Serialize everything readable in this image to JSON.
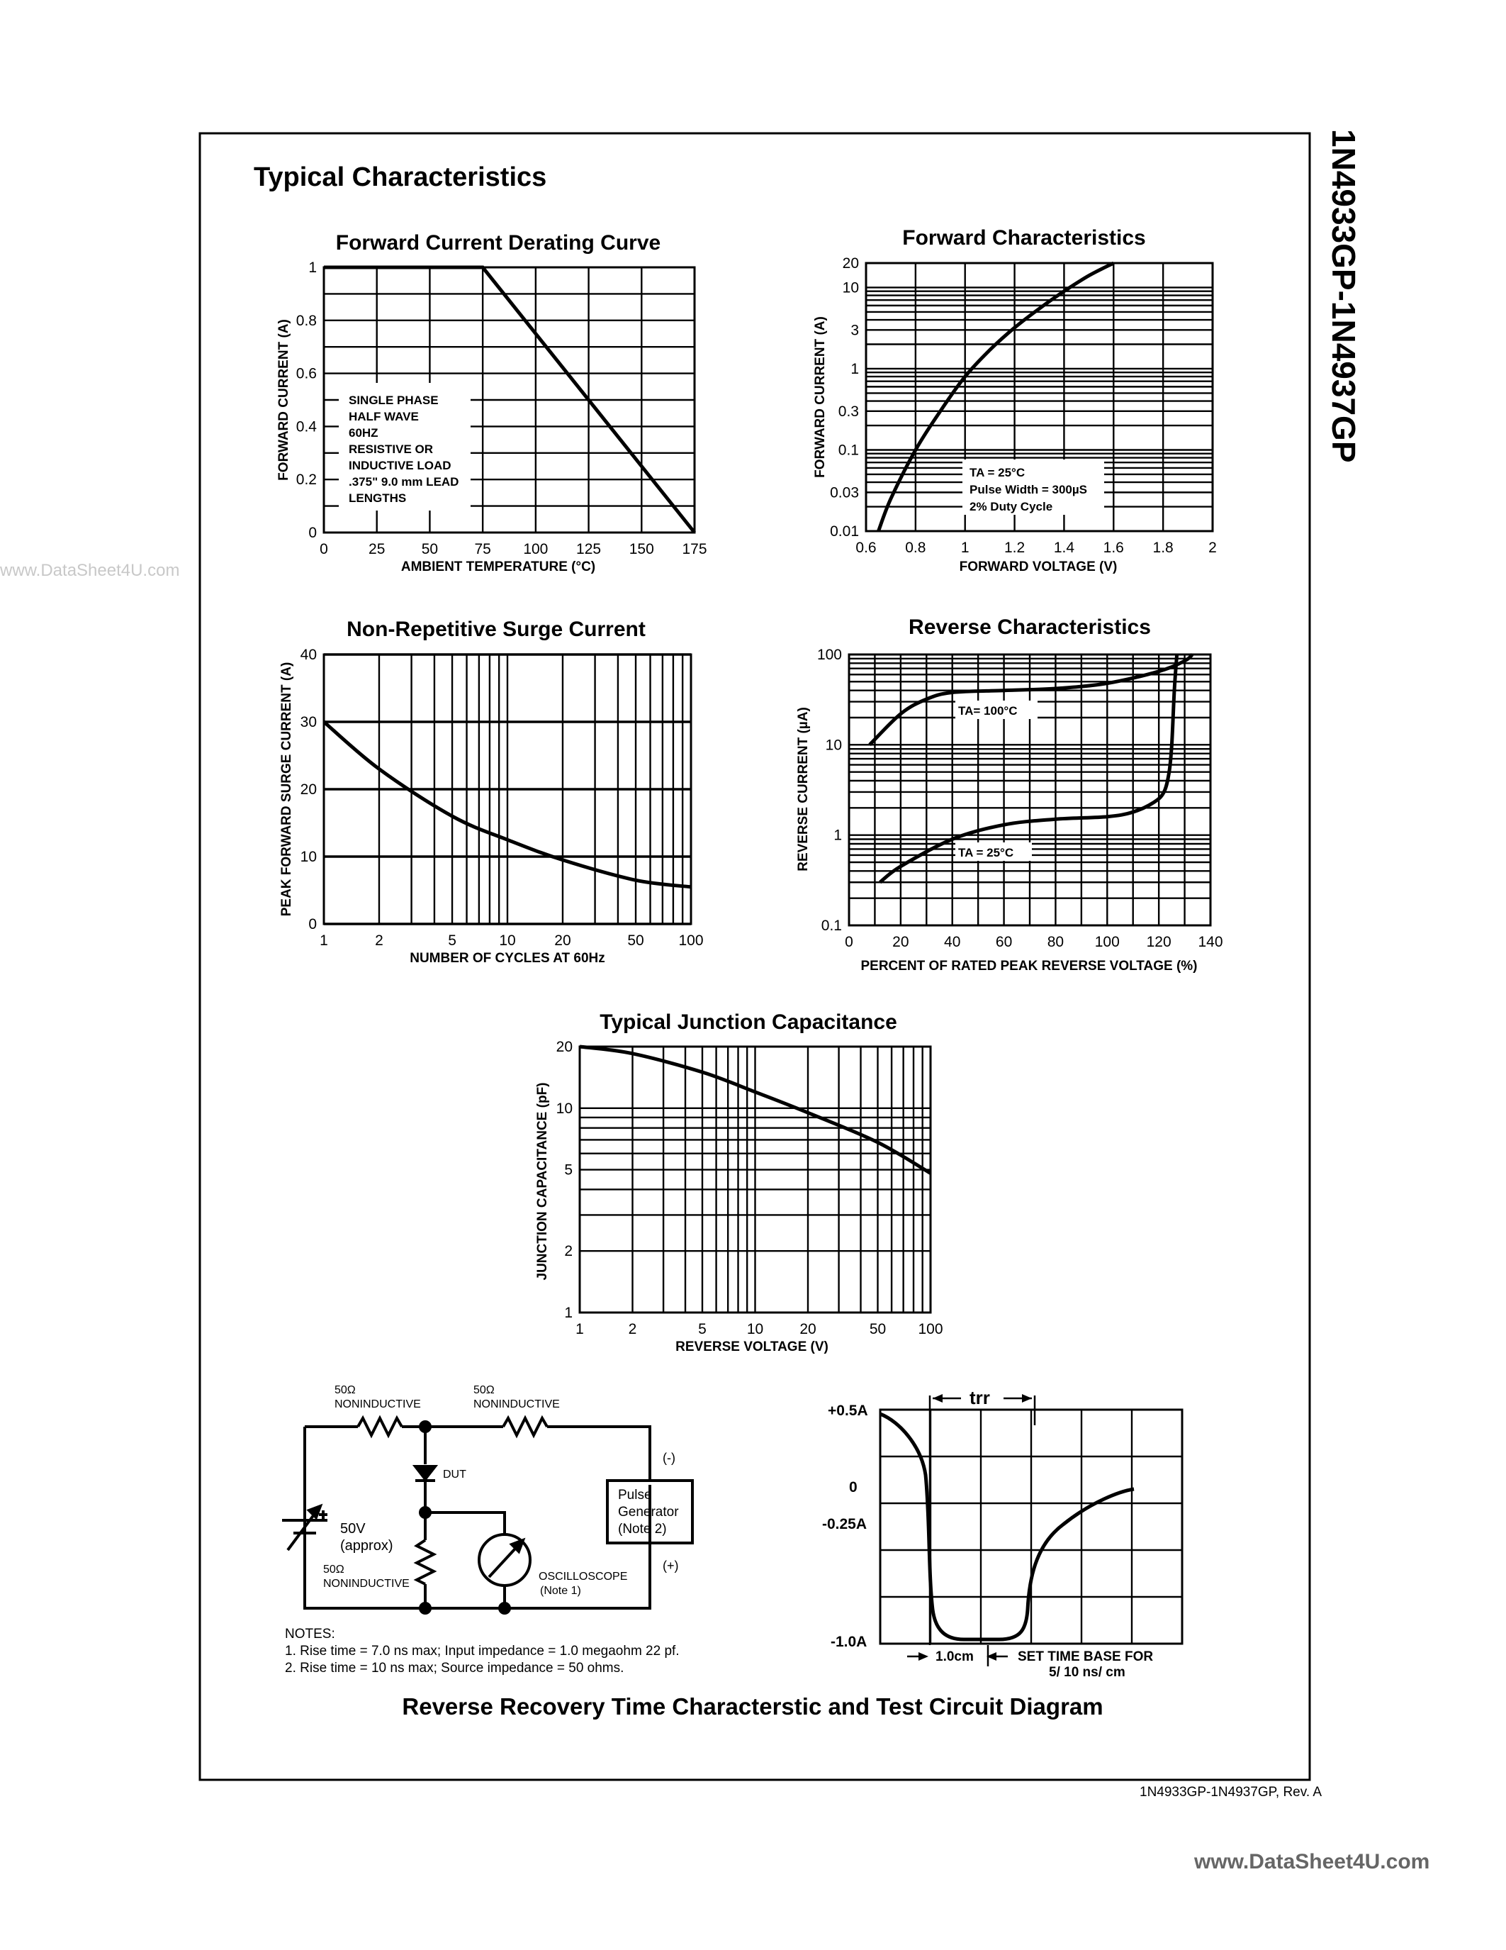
{
  "header": {
    "section_title": "Typical Characteristics",
    "part_number_vertical": "1N4933GP-1N4937GP"
  },
  "watermark": {
    "left": "www.DataSheet4U.com",
    "bottom_right": "www.DataSheet4U.com"
  },
  "footer": {
    "revision": "1N4933GP-1N4937GP, Rev. A"
  },
  "chart_data": [
    {
      "id": "derating",
      "type": "line",
      "title": "Forward Current Derating Curve",
      "xlabel": "AMBIENT TEMPERATURE (°C)",
      "ylabel": "FORWARD CURRENT (A)",
      "xlim": [
        0,
        175
      ],
      "ylim": [
        0,
        1
      ],
      "x_ticks": [
        0,
        25,
        50,
        75,
        100,
        125,
        150,
        175
      ],
      "y_ticks": [
        0,
        0.2,
        0.4,
        0.6,
        0.8,
        1
      ],
      "x_tick_labels": [
        "0",
        "25",
        "50",
        "75",
        "100",
        "125",
        "150",
        "175"
      ],
      "y_tick_labels": [
        "0",
        "0.2",
        "0.4",
        "0.6",
        "0.8",
        "1"
      ],
      "grid": true,
      "annotation": [
        "SINGLE PHASE",
        "HALF WAVE",
        "60HZ",
        "RESISTIVE OR",
        "INDUCTIVE LOAD",
        ".375\" 9.0 mm LEAD",
        "LENGTHS"
      ],
      "series": [
        {
          "x": [
            0,
            75,
            175
          ],
          "y": [
            1,
            1,
            0
          ]
        }
      ]
    },
    {
      "id": "forward",
      "type": "line",
      "title": "Forward Characteristics",
      "xlabel": "FORWARD VOLTAGE (V)",
      "ylabel": "FORWARD CURRENT (A)",
      "xlim": [
        0.6,
        2
      ],
      "ylim": [
        0.01,
        20
      ],
      "y_scale": "log",
      "x_tick_labels": [
        "0.6",
        "0.8",
        "1",
        "1.2",
        "1.4",
        "1.6",
        "1.8",
        "2"
      ],
      "y_ticks": [
        0.01,
        0.03,
        0.1,
        0.3,
        1,
        3,
        10,
        20
      ],
      "y_tick_labels": [
        "0.01",
        "0.03",
        "0.1",
        "0.3",
        "1",
        "3",
        "10",
        "20"
      ],
      "grid": true,
      "annotation": [
        "TA = 25°C",
        "Pulse Width = 300µS",
        "2% Duty Cycle"
      ],
      "series": [
        {
          "x": [
            0.65,
            0.7,
            0.8,
            0.9,
            1.0,
            1.1,
            1.2,
            1.3,
            1.4,
            1.5,
            1.6
          ],
          "y": [
            0.01,
            0.025,
            0.1,
            0.3,
            0.8,
            1.7,
            3.2,
            5.5,
            9,
            14,
            20
          ]
        }
      ]
    },
    {
      "id": "surge",
      "type": "line",
      "title": "Non-Repetitive Surge Current",
      "xlabel": "NUMBER OF CYCLES AT 60Hz",
      "ylabel": "PEAK FORWARD SURGE CURRENT (A)",
      "xlim": [
        1,
        100
      ],
      "x_scale": "log",
      "ylim": [
        0,
        40
      ],
      "x_ticks": [
        1,
        2,
        5,
        10,
        20,
        50,
        100
      ],
      "x_tick_labels": [
        "1",
        "2",
        "5",
        "10",
        "20",
        "50",
        "100"
      ],
      "y_ticks": [
        0,
        10,
        20,
        30,
        40
      ],
      "y_tick_labels": [
        "0",
        "10",
        "20",
        "30",
        "40"
      ],
      "grid": true,
      "series": [
        {
          "x": [
            1,
            2,
            5,
            10,
            20,
            50,
            100
          ],
          "y": [
            30,
            23,
            16,
            12.5,
            9.5,
            6.5,
            5.5
          ]
        }
      ]
    },
    {
      "id": "reverse",
      "type": "line",
      "title": "Reverse Characteristics",
      "xlabel": "PERCENT OF RATED PEAK REVERSE VOLTAGE (%)",
      "ylabel": "REVERSE CURRENT (µA)",
      "xlim": [
        0,
        140
      ],
      "ylim": [
        0.1,
        100
      ],
      "y_scale": "log",
      "x_ticks": [
        0,
        20,
        40,
        60,
        80,
        100,
        120,
        140
      ],
      "x_tick_labels": [
        "0",
        "20",
        "40",
        "60",
        "80",
        "100",
        "120",
        "140"
      ],
      "y_ticks": [
        0.1,
        1,
        10,
        100
      ],
      "y_tick_labels": [
        "0.1",
        "1",
        "10",
        "100"
      ],
      "grid": true,
      "series": [
        {
          "name": "TA= 100°C",
          "x": [
            8,
            20,
            30,
            40,
            60,
            80,
            100,
            120,
            130,
            133
          ],
          "y": [
            10,
            22,
            32,
            38,
            40,
            42,
            48,
            65,
            85,
            100
          ]
        },
        {
          "name": "TA = 25°C",
          "x": [
            12,
            20,
            40,
            60,
            80,
            100,
            110,
            118,
            122,
            124,
            125,
            126,
            127
          ],
          "y": [
            0.3,
            0.45,
            0.9,
            1.3,
            1.5,
            1.6,
            1.8,
            2.3,
            3.0,
            5.0,
            10,
            40,
            100
          ]
        }
      ]
    },
    {
      "id": "capacitance",
      "type": "line",
      "title": "Typical Junction Capacitance",
      "xlabel": "REVERSE VOLTAGE (V)",
      "ylabel": "JUNCTION CAPACITANCE (pF)",
      "xlim": [
        1,
        100
      ],
      "x_scale": "log",
      "ylim": [
        1,
        20
      ],
      "y_scale": "log",
      "x_ticks": [
        1,
        2,
        5,
        10,
        20,
        50,
        100
      ],
      "x_tick_labels": [
        "1",
        "2",
        "5",
        "10",
        "20",
        "50",
        "100"
      ],
      "y_ticks": [
        1,
        2,
        5,
        10,
        20
      ],
      "y_tick_labels": [
        "1",
        "2",
        "5",
        "10",
        "20"
      ],
      "grid": true,
      "series": [
        {
          "x": [
            1,
            2,
            5,
            10,
            20,
            50,
            100
          ],
          "y": [
            20,
            18.5,
            15,
            12,
            9.5,
            6.8,
            4.8
          ]
        }
      ]
    }
  ],
  "circuit": {
    "resistor_top_left": [
      "50Ω",
      "NONINDUCTIVE"
    ],
    "resistor_top_right": [
      "50Ω",
      "NONINDUCTIVE"
    ],
    "resistor_bottom": [
      "50Ω",
      "NONINDUCTIVE"
    ],
    "dut_label": "DUT",
    "source_label": [
      "50V",
      "(approx)"
    ],
    "scope_label": [
      "OSCILLOSCOPE",
      "(Note 1)"
    ],
    "pulse_gen": [
      "Pulse",
      "Generator",
      "(Note 2)"
    ],
    "pol_top": "(-)",
    "pol_bottom": "(+)",
    "notes": [
      "NOTES:",
      "1. Rise time = 7.0 ns max; Input impedance = 1.0 megaohm 22 pf.",
      "2. Rise time = 10 ns max; Source impedance = 50 ohms."
    ]
  },
  "waveform": {
    "trr_label": "trr",
    "y_labels": [
      "+0.5A",
      "0",
      "-0.25A",
      "-1.0A"
    ],
    "time_div": "1.0cm",
    "timebase": [
      "SET TIME BASE FOR",
      "5/ 10 ns/ cm"
    ]
  },
  "section_caption": "Reverse Recovery Time Characterstic and Test Circuit Diagram"
}
